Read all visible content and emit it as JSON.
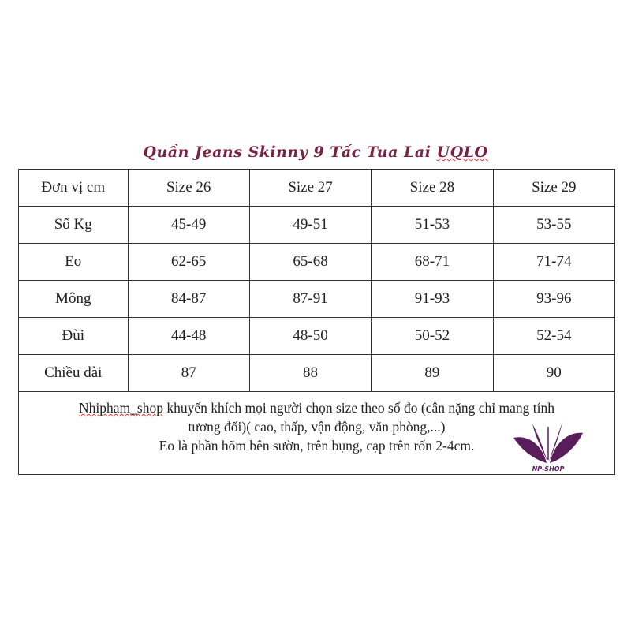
{
  "title": {
    "main": "Quần Jeans Skinny 9 Tấc Tua Lai",
    "brand": "UQLO"
  },
  "table": {
    "header": [
      "Đơn vị cm",
      "Size 26",
      "Size 27",
      "Size 28",
      "Size 29"
    ],
    "rows": [
      [
        "Số Kg",
        "45-49",
        "49-51",
        "51-53",
        "53-55"
      ],
      [
        "Eo",
        "62-65",
        "65-68",
        "68-71",
        "71-74"
      ],
      [
        "Mông",
        "84-87",
        "87-91",
        "91-93",
        "93-96"
      ],
      [
        "Đùi",
        "44-48",
        "48-50",
        "50-52",
        "52-54"
      ],
      [
        "Chiều dài",
        "87",
        "88",
        "89",
        "90"
      ]
    ]
  },
  "footer": {
    "shop_name": "Nhipham_shop",
    "line1_rest": " khuyến khích mọi người chọn size theo số đo (cân nặng chỉ mang tính",
    "line2": "tương đối)( cao, thấp, vận động, văn phòng,...)",
    "line3": "Eo là phần hõm bên sườn, trên bụng, cạp trên  rốn 2-4cm.",
    "logo_text": "NP-SHOP",
    "logo_color": "#5a1d5c"
  }
}
